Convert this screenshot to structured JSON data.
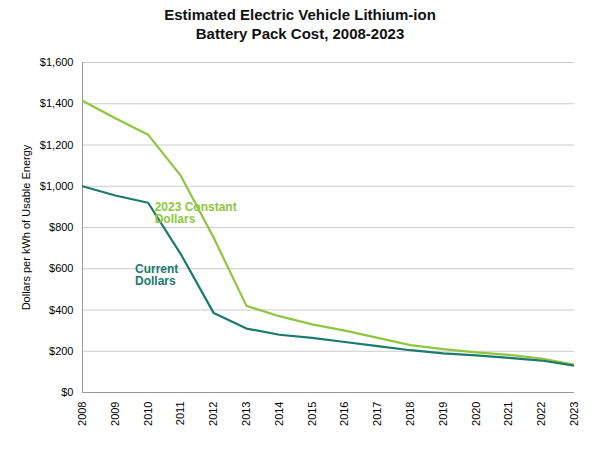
{
  "chart_data": {
    "type": "line",
    "title": "Estimated Electric Vehicle Lithium-ion\nBattery Pack Cost, 2008-2023",
    "ylabel": "Dollars per kWh of Usable Energy",
    "x": [
      2008,
      2009,
      2010,
      2011,
      2012,
      2013,
      2014,
      2015,
      2016,
      2017,
      2018,
      2019,
      2020,
      2021,
      2022,
      2023
    ],
    "series": [
      {
        "color": "#8ec63f",
        "values": [
          1415,
          1330,
          1250,
          1050,
          750,
          420,
          370,
          330,
          300,
          265,
          230,
          210,
          195,
          182,
          165,
          135
        ]
      },
      {
        "color": "#1a7a6e",
        "values": [
          1000,
          955,
          920,
          670,
          385,
          310,
          280,
          265,
          245,
          225,
          205,
          190,
          180,
          168,
          155,
          130
        ]
      }
    ],
    "annotations": [
      {
        "text": "Current\nDollars",
        "x": 2009.6,
        "y": 570,
        "color": "#1a7a6e"
      },
      {
        "text": "2023 Constant\nDollars",
        "x": 2010.2,
        "y": 870,
        "color": "#8ec63f"
      }
    ],
    "xlim": [
      2008,
      2023
    ],
    "xticks": [
      2008,
      2009,
      2010,
      2011,
      2012,
      2013,
      2014,
      2015,
      2016,
      2017,
      2018,
      2019,
      2020,
      2021,
      2022,
      2023
    ],
    "ylim": [
      0,
      1600
    ],
    "yticks": [
      {
        "value": 0,
        "label": "$0"
      },
      {
        "value": 200,
        "label": "$200"
      },
      {
        "value": 400,
        "label": "$400"
      },
      {
        "value": 600,
        "label": "$600"
      },
      {
        "value": 800,
        "label": "$800"
      },
      {
        "value": 1000,
        "label": "$1,000"
      },
      {
        "value": 1200,
        "label": "$1,200"
      },
      {
        "value": 1400,
        "label": "$1,400"
      },
      {
        "value": 1600,
        "label": "$1,600"
      }
    ],
    "grid": true
  }
}
